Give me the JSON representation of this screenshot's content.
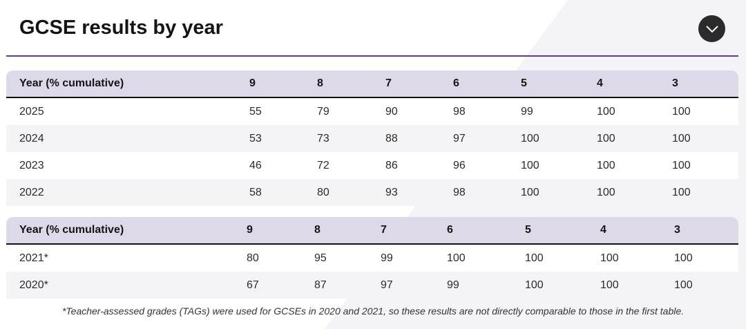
{
  "title": "GCSE results by year",
  "toggle_icon": "chevron-down-icon",
  "table1": {
    "headers": [
      "Year (% cumulative)",
      "9",
      "8",
      "7",
      "6",
      "5",
      "4",
      "3"
    ],
    "rows": [
      [
        "2025",
        "55",
        "79",
        "90",
        "98",
        "99",
        "100",
        "100"
      ],
      [
        "2024",
        "53",
        "73",
        "88",
        "97",
        "100",
        "100",
        "100"
      ],
      [
        "2023",
        "46",
        "72",
        "86",
        "96",
        "100",
        "100",
        "100"
      ],
      [
        "2022",
        "58",
        "80",
        "93",
        "98",
        "100",
        "100",
        "100"
      ]
    ]
  },
  "table2": {
    "headers": [
      "Year (% cumulative)",
      "9",
      "8",
      "7",
      "6",
      "5",
      "4",
      "3"
    ],
    "rows": [
      [
        "2021*",
        "80",
        "95",
        "99",
        "100",
        "100",
        "100",
        "100"
      ],
      [
        "2020*",
        "67",
        "87",
        "97",
        "99",
        "100",
        "100",
        "100"
      ]
    ]
  },
  "note": "*Teacher-assessed grades (TAGs) were used for GCSEs in 2020 and 2021, so these results are not directly comparable to those in the first table.",
  "colors": {
    "accent": "#5a3e8f",
    "header_bg": "#ddd9e9",
    "toggle_bg": "#2b2b2b"
  }
}
